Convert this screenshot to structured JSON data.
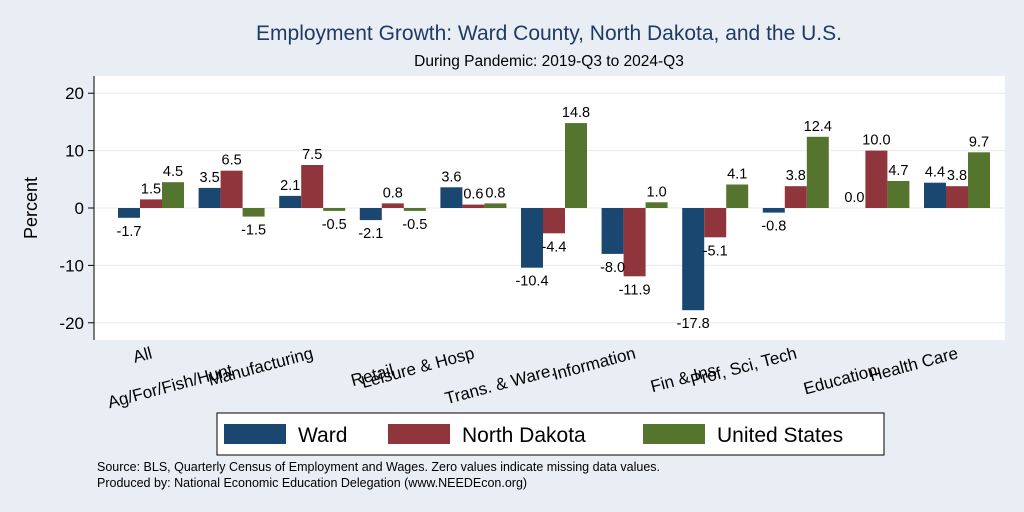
{
  "chart_data": {
    "type": "bar",
    "title": "Employment Growth: Ward County, North Dakota, and the U.S.",
    "subtitle": "During Pandemic: 2019-Q3 to 2024-Q3",
    "ylabel": "Percent",
    "ylim": [
      -23,
      23
    ],
    "yticks": [
      20,
      10,
      0,
      -10,
      -20
    ],
    "categories": [
      "All",
      "Ag/For/Fish/Hunt",
      "Manufacturing",
      "Retail",
      "Leisure & Hosp",
      "Trans. & Ware.",
      "Information",
      "Fin & Ins",
      "Prof, Sci, Tech",
      "Education",
      "Health Care"
    ],
    "series": [
      {
        "name": "Ward",
        "color": "#1a476f",
        "values": [
          -1.7,
          3.5,
          2.1,
          -2.1,
          3.6,
          -10.4,
          -8.0,
          -17.8,
          -0.8,
          0.0,
          4.4
        ],
        "labels": [
          "-1.7",
          "3.5",
          "2.1",
          "-2.1",
          "3.6",
          "-10.4",
          "-8.0",
          "-17.8",
          "-0.8",
          "0.0",
          "4.4"
        ]
      },
      {
        "name": "North Dakota",
        "color": "#90353b",
        "values": [
          1.5,
          6.5,
          7.5,
          0.8,
          0.6,
          -4.4,
          -11.9,
          -5.1,
          3.8,
          10.0,
          3.8
        ],
        "labels": [
          "1.5",
          "6.5",
          "7.5",
          "0.8",
          "0.6",
          "-4.4",
          "-11.9",
          "-5.1",
          "3.8",
          "10.0",
          "3.8"
        ]
      },
      {
        "name": "United States",
        "color": "#55752f",
        "values": [
          4.5,
          -1.5,
          -0.5,
          -0.5,
          0.8,
          14.8,
          1.0,
          4.1,
          12.4,
          4.7,
          9.7
        ],
        "labels": [
          "4.5",
          "-1.5",
          "-0.5",
          "-0.5",
          "0.8",
          "14.8",
          "1.0",
          "4.1",
          "12.4",
          "4.7",
          "9.7"
        ]
      }
    ],
    "legend_position": "bottom",
    "grid": true
  },
  "footer": {
    "source": "Source: BLS, Quarterly Census of Employment and Wages. Zero values indicate missing data values.",
    "produced": "Produced by: National Economic Education Delegation (www.NEEDEcon.org)"
  }
}
